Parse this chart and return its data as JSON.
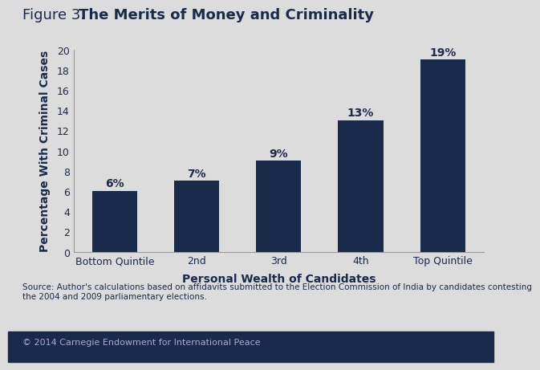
{
  "title_prefix": "Figure 3. ",
  "title_bold": "The Merits of Money and Criminality",
  "categories": [
    "Bottom Quintile",
    "2nd",
    "3rd",
    "4th",
    "Top Quintile"
  ],
  "values": [
    6,
    7,
    9,
    13,
    19
  ],
  "labels": [
    "6%",
    "7%",
    "9%",
    "13%",
    "19%"
  ],
  "bar_color": "#1a2a4a",
  "xlabel": "Personal Wealth of Candidates",
  "ylabel": "Percentage With Criminal Cases",
  "ylim": [
    0,
    20
  ],
  "yticks": [
    0,
    2,
    4,
    6,
    8,
    10,
    12,
    14,
    16,
    18,
    20
  ],
  "background_color": "#dcdcdc",
  "plot_background_color": "#dcdcdc",
  "footer_bg_color": "#1a2a4a",
  "source_text": "Source: Author's calculations based on affidavits submitted to the Election Commission of India by candidates contesting\nthe 2004 and 2009 parliamentary elections.",
  "footer_text": "© 2014 Carnegie Endowment for International Peace",
  "title_fontsize": 13,
  "axis_label_fontsize": 10,
  "tick_fontsize": 9,
  "bar_label_fontsize": 10,
  "source_fontsize": 7.5,
  "footer_fontsize": 8,
  "footer_text_color": "#aaaacc",
  "text_color": "#1a2a4a"
}
